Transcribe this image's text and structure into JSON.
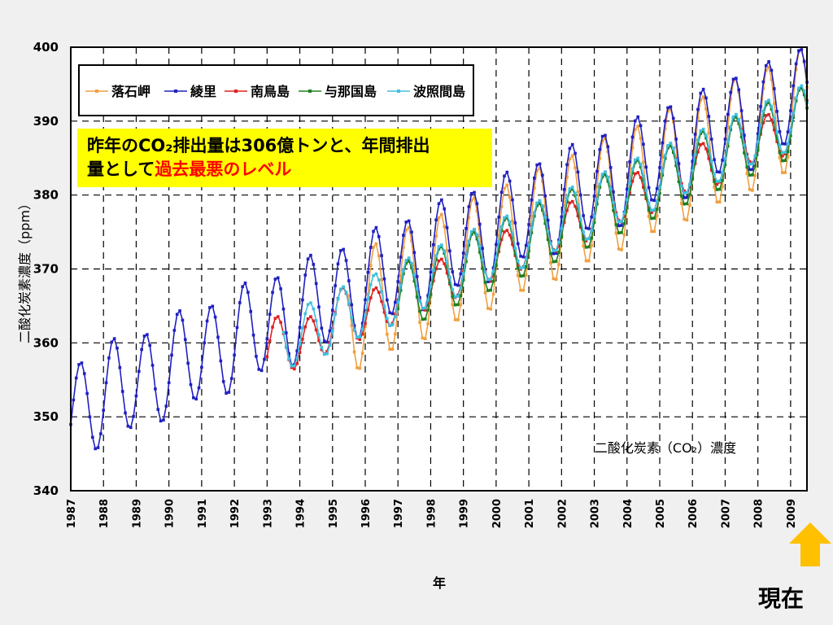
{
  "callout": {
    "line1": "昨年のCO₂排出量は306億トンと、年間排出",
    "line2_prefix": "量として",
    "line2_highlight": "過去最悪のレベル"
  },
  "now_label": "現在",
  "chart_data": {
    "type": "line",
    "title": "二酸化炭素（CO₂）濃度",
    "xlabel": "年",
    "ylabel": "二酸化炭素濃度（ppm）",
    "ylim": [
      340,
      400
    ],
    "yticks": [
      340,
      350,
      360,
      370,
      380,
      390,
      400
    ],
    "xticks": [
      "1987",
      "1988",
      "1989",
      "1990",
      "1991",
      "1992",
      "1993",
      "1994",
      "1995",
      "1996",
      "1997",
      "1998",
      "1999",
      "2000",
      "2001",
      "2002",
      "2003",
      "2004",
      "2005",
      "2006",
      "2007",
      "2008",
      "2009"
    ],
    "xlim": [
      1987,
      2009.5
    ],
    "grid": true,
    "legend_position": "top-left",
    "series": [
      {
        "name": "落石岬",
        "color": "#f0a040",
        "marker": "*",
        "start": 1995.5,
        "end": 2009.5,
        "base": 364.0,
        "trend": 2.0,
        "amp": 8.0,
        "offset": 0.3
      },
      {
        "name": "綾里",
        "color": "#2020c0",
        "marker": "+",
        "start": 1987.0,
        "end": 2009.5,
        "base": 351.0,
        "trend": 1.9,
        "amp": 6.5,
        "offset": 0.8
      },
      {
        "name": "南鳥島",
        "color": "#e02020",
        "marker": "+",
        "start": 1993.0,
        "end": 2009.5,
        "base": 358.5,
        "trend": 1.95,
        "amp": 3.5,
        "offset": -1.0
      },
      {
        "name": "与那国島",
        "color": "#208020",
        "marker": "+",
        "start": 1997.0,
        "end": 2009.5,
        "base": 366.0,
        "trend": 1.95,
        "amp": 4.5,
        "offset": 0.0
      },
      {
        "name": "波照間島",
        "color": "#40c0e0",
        "marker": "*",
        "start": 1993.5,
        "end": 2009.5,
        "base": 360.0,
        "trend": 1.95,
        "amp": 4.0,
        "offset": 0.2
      }
    ]
  }
}
